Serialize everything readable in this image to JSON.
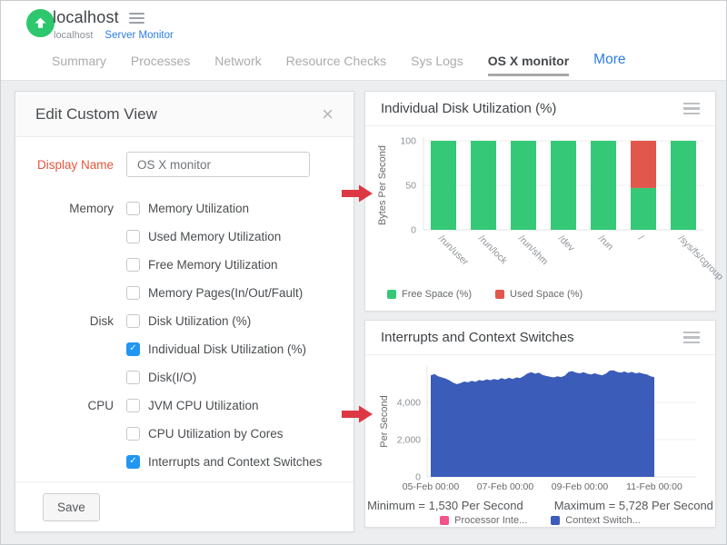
{
  "header": {
    "title": "localhost",
    "breadcrumb": {
      "host": "localhost",
      "link": "Server Monitor"
    },
    "tabs": [
      {
        "label": "Summary"
      },
      {
        "label": "Processes"
      },
      {
        "label": "Network"
      },
      {
        "label": "Resource Checks"
      },
      {
        "label": "Sys Logs"
      },
      {
        "label": "OS X monitor",
        "active": true
      },
      {
        "label": "More",
        "accent": true
      }
    ]
  },
  "dialog": {
    "title": "Edit Custom View",
    "close_glyph": "×",
    "display_name_label": "Display Name",
    "display_name_value": "OS X monitor",
    "groups": [
      {
        "label": "Memory",
        "options": [
          {
            "label": "Memory Utilization",
            "checked": false
          },
          {
            "label": "Used Memory Utilization",
            "checked": false
          },
          {
            "label": "Free Memory Utilization",
            "checked": false
          },
          {
            "label": "Memory Pages(In/Out/Fault)",
            "checked": false
          }
        ]
      },
      {
        "label": "Disk",
        "options": [
          {
            "label": "Disk Utilization (%)",
            "checked": false
          },
          {
            "label": "Individual Disk Utilization (%)",
            "checked": true
          },
          {
            "label": "Disk(I/O)",
            "checked": false
          }
        ]
      },
      {
        "label": "CPU",
        "options": [
          {
            "label": "JVM CPU Utilization",
            "checked": false
          },
          {
            "label": "CPU Utilization by Cores",
            "checked": false
          },
          {
            "label": "Interrupts and Context Switches",
            "checked": true
          }
        ]
      }
    ],
    "save_label": "Save"
  },
  "colors": {
    "badge_green": "#2dc76d",
    "accent_blue": "#2b7de0",
    "checkbox_blue": "#2196f3",
    "label_red": "#e8543c",
    "arrow_red": "#de3744"
  },
  "chart_data": [
    {
      "type": "bar",
      "stacked": true,
      "title": "Individual Disk Utilization (%)",
      "xlabel": "",
      "ylabel": "Bytes Per Second",
      "ylim": [
        0,
        100
      ],
      "yticks": [
        0,
        50,
        100
      ],
      "grid": true,
      "legend_position": "bottom",
      "categories": [
        "/run/user",
        "/run/lock",
        "/run/shm",
        "/dev",
        "/run",
        "/",
        "/sys/fs/cgroup"
      ],
      "series": [
        {
          "name": "Free Space (%)",
          "color": "#35c877",
          "values": [
            100,
            100,
            100,
            100,
            100,
            47,
            100
          ]
        },
        {
          "name": "Used Space (%)",
          "color": "#e2574b",
          "values": [
            0,
            0,
            0,
            0,
            0,
            53,
            0
          ]
        }
      ]
    },
    {
      "type": "area",
      "title": "Interrupts and Context Switches",
      "xlabel": "",
      "ylabel": "Per Second",
      "ylim": [
        0,
        6000
      ],
      "yticks": [
        0,
        2000,
        4000
      ],
      "grid": true,
      "legend_position": "bottom",
      "x_ticklabels": [
        "05-Feb 00:00",
        "07-Feb 00:00",
        "09-Feb 00:00",
        "11-Feb 00:00"
      ],
      "min_value": 1530,
      "max_value": 5728,
      "footer": {
        "minimum": "Minimum = 1,530 Per Second",
        "maximum": "Maximum = 5,728 Per Second"
      },
      "series": [
        {
          "name": "Processor Inte...",
          "color": "#f4538a",
          "values": []
        },
        {
          "name": "Context Switch...",
          "color": "#3b5cb8",
          "values": [
            5450,
            5520,
            5400,
            5340,
            5280,
            5180,
            5060,
            4980,
            5040,
            5120,
            5080,
            5160,
            5100,
            5200,
            5160,
            5240,
            5190,
            5260,
            5210,
            5300,
            5240,
            5320,
            5260,
            5340,
            5300,
            5420,
            5560,
            5620,
            5540,
            5600,
            5480,
            5420,
            5380,
            5340,
            5400,
            5360,
            5440,
            5640,
            5680,
            5600,
            5560,
            5620,
            5540,
            5500,
            5560,
            5500,
            5460,
            5540,
            5700,
            5728,
            5640,
            5600,
            5660,
            5580,
            5640,
            5560,
            5600,
            5540,
            5500,
            5400,
            5350
          ]
        }
      ]
    }
  ]
}
